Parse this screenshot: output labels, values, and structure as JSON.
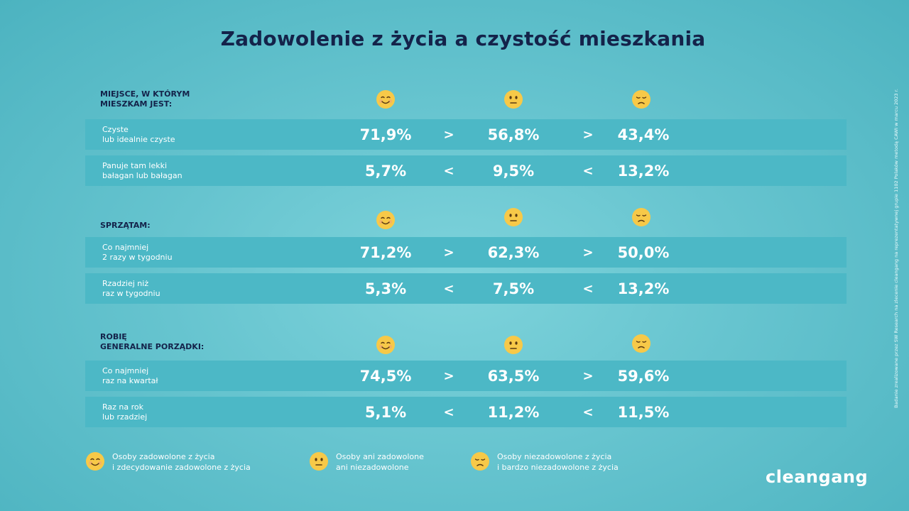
{
  "title": "Zadowolenie z życia a czystość mieszkania",
  "chart_data": {
    "type": "table",
    "columns": [
      "satisfied",
      "neutral",
      "dissatisfied"
    ],
    "sections": [
      {
        "label": "MIEJSCE, W KTÓRYM\nMIESZKAM JEST:",
        "rows": [
          {
            "label": "Czyste\nlub idealnie czyste",
            "values": [
              "71,9%",
              "56,8%",
              "43,4%"
            ],
            "comparisons": [
              ">",
              ">"
            ]
          },
          {
            "label": "Panuje tam lekki\nbałagan lub bałagan",
            "values": [
              "5,7%",
              "9,5%",
              "13,2%"
            ],
            "comparisons": [
              "<",
              "<"
            ]
          }
        ]
      },
      {
        "label": "SPRZĄTAM:",
        "rows": [
          {
            "label": "Co najmniej\n2 razy w tygodniu",
            "values": [
              "71,2%",
              "62,3%",
              "50,0%"
            ],
            "comparisons": [
              ">",
              ">"
            ]
          },
          {
            "label": "Rzadziej niż\nraz w tygodniu",
            "values": [
              "5,3%",
              "7,5%",
              "13,2%"
            ],
            "comparisons": [
              "<",
              "<"
            ]
          }
        ]
      },
      {
        "label": "ROBIĘ\nGENERALNE PORZĄDKI:",
        "rows": [
          {
            "label": "Co najmniej\nraz na kwartał",
            "values": [
              "74,5%",
              "63,5%",
              "59,6%"
            ],
            "comparisons": [
              ">",
              ">"
            ]
          },
          {
            "label": "Raz na rok\nlub rzadziej",
            "values": [
              "5,1%",
              "11,2%",
              "11,5%"
            ],
            "comparisons": [
              "<",
              "<"
            ]
          }
        ]
      }
    ]
  },
  "legend": [
    {
      "icon": "smiling-face-icon",
      "text": "Osoby zadowolone z życia\ni zdecydowanie zadowolone z życia"
    },
    {
      "icon": "neutral-face-icon",
      "text": "Osoby ani zadowolone\nani niezadowolone"
    },
    {
      "icon": "sad-face-icon",
      "text": "Osoby niezadowolone z życia\ni bardzo niezadowolone z życia"
    }
  ],
  "source_note": "Badanie zrealizowane przez SW Research na zlecenie cleangang na reprezentatywnej grupie 1102 Polaków metodą CAWI w marcu 2023 r.",
  "logo": "cleangang",
  "colors": {
    "background": "#66c4cf",
    "row": "#4cb8c6",
    "title": "#14234a",
    "emoji": "#f7c948"
  }
}
